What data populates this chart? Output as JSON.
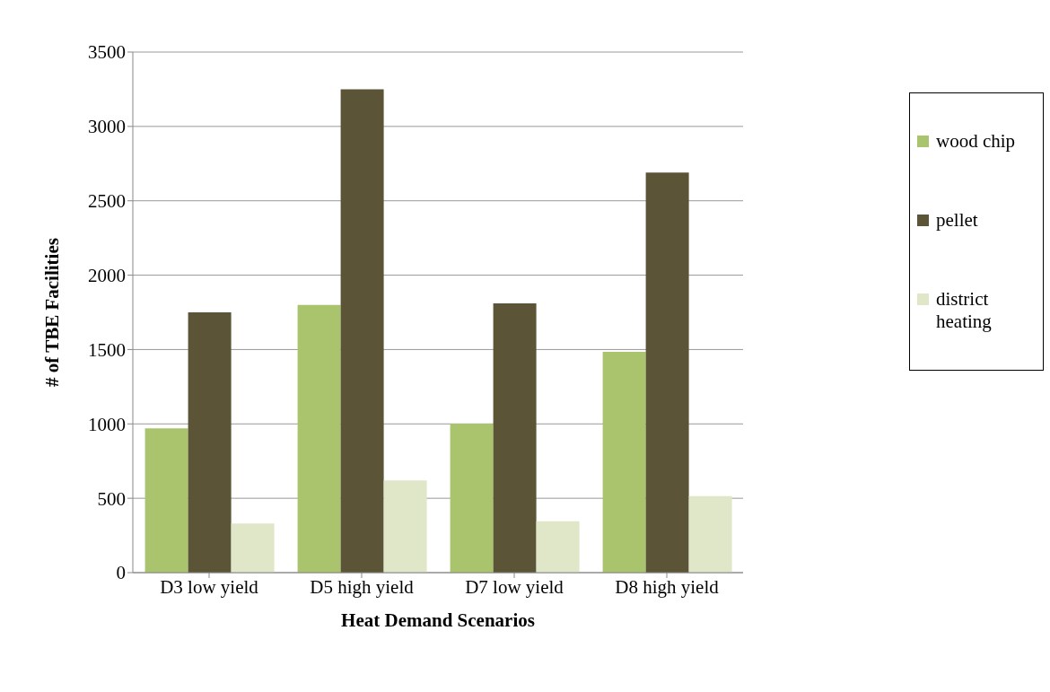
{
  "chart_data": {
    "type": "bar",
    "xlabel": "Heat Demand Scenarios",
    "ylabel": "# of TBE Facilities",
    "categories": [
      "D3 low yield",
      "D5 high yield",
      "D7 low yield",
      "D8 high yield"
    ],
    "series": [
      {
        "name": "wood chip",
        "color": "#a9c46d",
        "values": [
          970,
          1800,
          1000,
          1485
        ]
      },
      {
        "name": "pellet",
        "color": "#5c5437",
        "values": [
          1750,
          3250,
          1810,
          2690
        ]
      },
      {
        "name": "district heating",
        "color": "#dfe7c8",
        "values": [
          330,
          620,
          345,
          515
        ]
      }
    ],
    "ylim": [
      0,
      3500
    ],
    "yticks": [
      0,
      500,
      1000,
      1500,
      2000,
      2500,
      3000,
      3500
    ],
    "grid": "y",
    "legend": "right"
  }
}
